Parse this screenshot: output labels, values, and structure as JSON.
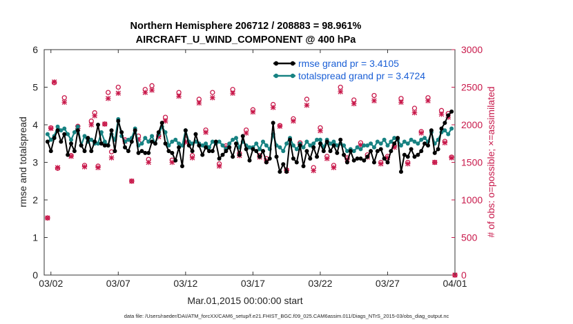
{
  "chart_data": {
    "type": "line",
    "title": "Northern Hemisphere 206712 / 208883 = 98.961%",
    "subtitle": "AIRCRAFT_U_WIND_COMPONENT @ 400 hPa",
    "xlabel": "Mar.01,2015 00:00:00 start",
    "ylabel": "rmse and totalspread",
    "y2label": "# of obs: o=possible; ×=assimilated",
    "footer": "data file: /Users/raeder/DAI/ATM_forcXX/CAM6_setup/f.e21.FHIST_BGC.f09_025.CAM6assim.011/Diags_NTrS_2015-03/obs_diag_output.nc",
    "xticks": [
      "03/02",
      "03/07",
      "03/12",
      "03/17",
      "03/22",
      "03/27",
      "04/01"
    ],
    "xtick_days": [
      1,
      6,
      11,
      16,
      21,
      26,
      31
    ],
    "xlim": [
      0.5,
      31
    ],
    "ylim": [
      0,
      6
    ],
    "yticks": [
      "0",
      "1",
      "2",
      "3",
      "4",
      "5",
      "6"
    ],
    "y2lim": [
      0,
      3000
    ],
    "y2ticks": [
      "0",
      "500",
      "1000",
      "1500",
      "2000",
      "2500",
      "3000"
    ],
    "legend": [
      "rmse grand pr = 3.4105",
      "totalspread grand pr = 3.4724"
    ],
    "colors": {
      "rmse": "#000000",
      "spread": "#178282",
      "obs": "#c8184a",
      "legend_text": "#1a5fd6"
    },
    "series": [
      {
        "name": "rmse",
        "x": [
          0.75,
          1.0,
          1.25,
          1.5,
          1.75,
          2.0,
          2.25,
          2.5,
          2.75,
          3.0,
          3.25,
          3.5,
          3.75,
          4.0,
          4.25,
          4.5,
          4.75,
          5.0,
          5.25,
          5.5,
          5.75,
          6.0,
          6.25,
          6.5,
          6.75,
          7.0,
          7.25,
          7.5,
          7.75,
          8.0,
          8.25,
          8.5,
          8.75,
          9.0,
          9.25,
          9.5,
          9.75,
          10.0,
          10.25,
          10.5,
          10.75,
          11.0,
          11.25,
          11.5,
          11.75,
          12.0,
          12.25,
          12.5,
          12.75,
          13.0,
          13.25,
          13.5,
          13.75,
          14.0,
          14.25,
          14.5,
          14.75,
          15.0,
          15.25,
          15.5,
          15.75,
          16.0,
          16.25,
          16.5,
          16.75,
          17.0,
          17.25,
          17.5,
          17.75,
          18.0,
          18.25,
          18.5,
          18.75,
          19.0,
          19.25,
          19.5,
          19.75,
          20.0,
          20.25,
          20.5,
          20.75,
          21.0,
          21.25,
          21.5,
          21.75,
          22.0,
          22.25,
          22.5,
          22.75,
          23.0,
          23.25,
          23.5,
          23.75,
          24.0,
          24.25,
          24.5,
          24.75,
          25.0,
          25.25,
          25.5,
          25.75,
          26.0,
          26.25,
          26.5,
          26.75,
          27.0,
          27.25,
          27.5,
          27.75,
          28.0,
          28.25,
          28.5,
          28.75,
          29.0,
          29.25,
          29.5,
          29.75,
          30.0,
          30.25,
          30.5,
          30.75
        ],
        "values": [
          3.55,
          3.3,
          3.65,
          3.85,
          3.55,
          3.75,
          3.2,
          3.5,
          3.3,
          3.85,
          3.45,
          3.3,
          3.65,
          3.3,
          3.55,
          4.0,
          3.5,
          3.45,
          3.45,
          3.85,
          3.3,
          4.1,
          3.8,
          3.4,
          3.3,
          3.55,
          3.85,
          3.25,
          3.3,
          3.25,
          3.25,
          3.55,
          3.5,
          3.8,
          4.05,
          3.5,
          3.3,
          3.25,
          3.05,
          3.4,
          2.9,
          3.85,
          3.45,
          3.3,
          3.75,
          3.45,
          3.2,
          3.4,
          3.3,
          3.3,
          3.55,
          3.1,
          3.2,
          3.3,
          3.4,
          3.15,
          3.5,
          3.2,
          3.7,
          3.35,
          3.05,
          3.35,
          3.3,
          3.15,
          3.3,
          3.0,
          3.1,
          4.05,
          3.15,
          2.75,
          2.95,
          2.75,
          3.6,
          3.1,
          3.0,
          3.45,
          2.9,
          3.3,
          3.1,
          3.4,
          3.15,
          3.5,
          3.3,
          3.55,
          3.3,
          3.45,
          3.25,
          3.6,
          3.2,
          3.0,
          3.3,
          3.05,
          3.1,
          3.1,
          3.05,
          3.15,
          3.3,
          3.0,
          3.3,
          3.35,
          3.1,
          3.0,
          3.3,
          3.5,
          3.65,
          2.75,
          3.2,
          3.15,
          3.35,
          3.15,
          3.2,
          3.3,
          3.5,
          3.45,
          3.85,
          3.25,
          3.35,
          3.9,
          4.05,
          4.25,
          4.35
        ]
      },
      {
        "name": "totalspread",
        "x": [
          0.75,
          1.0,
          1.25,
          1.5,
          1.75,
          2.0,
          2.25,
          2.5,
          2.75,
          3.0,
          3.25,
          3.5,
          3.75,
          4.0,
          4.25,
          4.5,
          4.75,
          5.0,
          5.25,
          5.5,
          5.75,
          6.0,
          6.25,
          6.5,
          6.75,
          7.0,
          7.25,
          7.5,
          7.75,
          8.0,
          8.25,
          8.5,
          8.75,
          9.0,
          9.25,
          9.5,
          9.75,
          10.0,
          10.25,
          10.5,
          10.75,
          11.0,
          11.25,
          11.5,
          11.75,
          12.0,
          12.25,
          12.5,
          12.75,
          13.0,
          13.25,
          13.5,
          13.75,
          14.0,
          14.25,
          14.5,
          14.75,
          15.0,
          15.25,
          15.5,
          15.75,
          16.0,
          16.25,
          16.5,
          16.75,
          17.0,
          17.25,
          17.5,
          17.75,
          18.0,
          18.25,
          18.5,
          18.75,
          19.0,
          19.25,
          19.5,
          19.75,
          20.0,
          20.25,
          20.5,
          20.75,
          21.0,
          21.25,
          21.5,
          21.75,
          22.0,
          22.25,
          22.5,
          22.75,
          23.0,
          23.25,
          23.5,
          23.75,
          24.0,
          24.25,
          24.5,
          24.75,
          25.0,
          25.25,
          25.5,
          25.75,
          26.0,
          26.25,
          26.5,
          26.75,
          27.0,
          27.25,
          27.5,
          27.75,
          28.0,
          28.25,
          28.5,
          28.75,
          29.0,
          29.25,
          29.5,
          29.75,
          30.0,
          30.25,
          30.5,
          30.75
        ],
        "values": [
          3.75,
          3.6,
          3.7,
          3.95,
          3.85,
          3.9,
          3.75,
          3.6,
          3.8,
          3.95,
          3.45,
          3.7,
          3.55,
          3.6,
          3.5,
          3.5,
          3.8,
          3.55,
          3.45,
          3.75,
          3.6,
          4.15,
          3.7,
          3.55,
          3.6,
          3.65,
          3.9,
          3.45,
          3.5,
          3.65,
          3.55,
          3.7,
          3.5,
          3.75,
          3.95,
          3.8,
          3.45,
          3.55,
          3.6,
          3.5,
          3.45,
          3.85,
          3.55,
          3.5,
          3.55,
          3.5,
          3.45,
          3.5,
          3.4,
          3.55,
          3.5,
          3.55,
          3.45,
          3.35,
          3.5,
          3.6,
          3.65,
          3.4,
          3.55,
          3.45,
          3.4,
          3.4,
          3.5,
          3.35,
          3.55,
          3.45,
          3.35,
          3.75,
          3.45,
          3.4,
          3.3,
          3.5,
          3.65,
          3.45,
          3.35,
          3.5,
          3.4,
          3.55,
          3.45,
          3.5,
          3.6,
          3.6,
          3.4,
          3.6,
          3.5,
          3.55,
          3.45,
          3.5,
          3.45,
          3.3,
          3.35,
          3.3,
          3.4,
          3.35,
          3.45,
          3.45,
          3.5,
          3.4,
          3.55,
          3.5,
          3.6,
          3.45,
          3.55,
          3.65,
          3.6,
          3.45,
          3.55,
          3.5,
          3.6,
          3.55,
          3.5,
          3.6,
          3.65,
          3.55,
          3.8,
          3.5,
          3.6,
          3.8,
          3.85,
          3.75,
          3.9
        ]
      },
      {
        "name": "obs_possible",
        "x": [
          0.75,
          1.0,
          1.25,
          1.5,
          2.0,
          2.5,
          3.0,
          3.5,
          4.0,
          4.25,
          4.5,
          5.0,
          5.25,
          5.5,
          6.0,
          6.5,
          7.0,
          7.5,
          8.0,
          8.25,
          8.5,
          9.0,
          9.5,
          10.0,
          10.5,
          11.0,
          11.5,
          12.0,
          12.5,
          13.0,
          13.5,
          14.0,
          14.5,
          15.0,
          15.5,
          16.0,
          16.5,
          17.0,
          17.5,
          18.0,
          18.5,
          19.0,
          19.5,
          20.0,
          20.5,
          21.0,
          21.5,
          22.0,
          22.5,
          23.0,
          23.5,
          24.0,
          24.5,
          25.0,
          25.5,
          26.0,
          26.5,
          27.0,
          27.5,
          28.0,
          28.5,
          29.0,
          29.5,
          30.0,
          30.25,
          30.5,
          30.75,
          31.0
        ],
        "values": [
          760,
          1960,
          2560,
          1420,
          2360,
          1590,
          1980,
          1460,
          2050,
          2160,
          1450,
          2010,
          2430,
          1640,
          2500,
          1800,
          1250,
          1850,
          2470,
          1540,
          2520,
          1860,
          2100,
          1530,
          2430,
          1810,
          1590,
          2340,
          1930,
          2430,
          1480,
          1720,
          2470,
          1620,
          1930,
          2200,
          1590,
          1550,
          2270,
          1990,
          1400,
          2080,
          1760,
          2340,
          1430,
          1960,
          1580,
          1460,
          2500,
          1560,
          2330,
          1760,
          1600,
          2390,
          1500,
          1580,
          1720,
          2350,
          1500,
          2220,
          1910,
          2360,
          1500,
          2190,
          1780,
          2150,
          1570,
          0
        ]
      },
      {
        "name": "obs_assimilated",
        "x": [
          0.75,
          1.0,
          1.25,
          1.5,
          2.0,
          2.5,
          3.0,
          3.5,
          4.0,
          4.25,
          4.5,
          5.0,
          5.25,
          5.5,
          6.0,
          6.5,
          7.0,
          7.5,
          8.0,
          8.25,
          8.5,
          9.0,
          9.5,
          10.0,
          10.5,
          11.0,
          11.5,
          12.0,
          12.5,
          13.0,
          13.5,
          14.0,
          14.5,
          15.0,
          15.5,
          16.0,
          16.5,
          17.0,
          17.5,
          18.0,
          18.5,
          19.0,
          19.5,
          20.0,
          20.5,
          21.0,
          21.5,
          22.0,
          22.5,
          23.0,
          23.5,
          24.0,
          24.5,
          25.0,
          25.5,
          26.0,
          26.5,
          27.0,
          27.5,
          28.0,
          28.5,
          29.0,
          29.5,
          30.0,
          30.25,
          30.5,
          30.75,
          31.0
        ],
        "values": [
          760,
          1950,
          2570,
          1430,
          2300,
          1580,
          1950,
          1440,
          2000,
          2120,
          1430,
          2010,
          2350,
          1560,
          2420,
          1780,
          1250,
          1800,
          2430,
          1500,
          2460,
          1840,
          2050,
          1500,
          2380,
          1770,
          1560,
          2290,
          1900,
          2360,
          1450,
          1700,
          2420,
          1590,
          1890,
          2170,
          1570,
          1520,
          2230,
          1980,
          1390,
          2050,
          1740,
          2260,
          1390,
          1920,
          1550,
          1430,
          2440,
          1540,
          2280,
          1730,
          1570,
          2320,
          1480,
          1560,
          1700,
          2300,
          1480,
          2160,
          1890,
          2320,
          1500,
          2140,
          1760,
          2100,
          1560,
          0
        ]
      }
    ]
  }
}
